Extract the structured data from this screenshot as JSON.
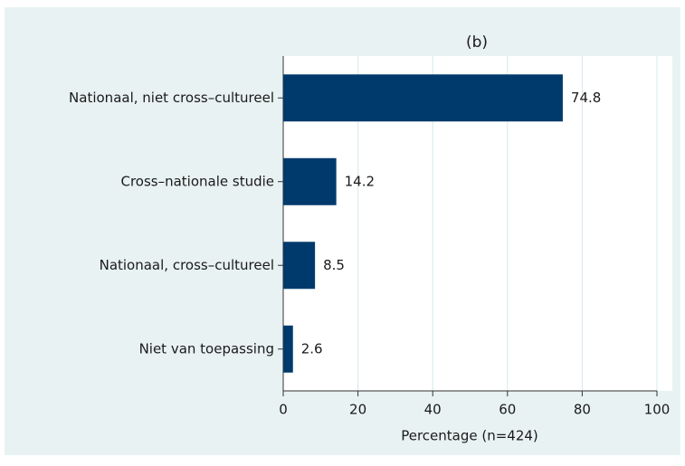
{
  "chart_data": {
    "type": "bar",
    "orientation": "horizontal",
    "title": "(b)",
    "categories": [
      "Nationaal, niet cross–cultureel",
      "Cross–nationale studie",
      "Nationaal, cross–cultureel",
      "Niet van toepassing"
    ],
    "values": [
      74.8,
      14.2,
      8.5,
      2.6
    ],
    "color": "#003a6c",
    "xlabel": "Percentage (n=424)",
    "xlim": [
      0,
      100
    ],
    "xticks": [
      0,
      20,
      40,
      60,
      80,
      100
    ],
    "grid": true
  }
}
